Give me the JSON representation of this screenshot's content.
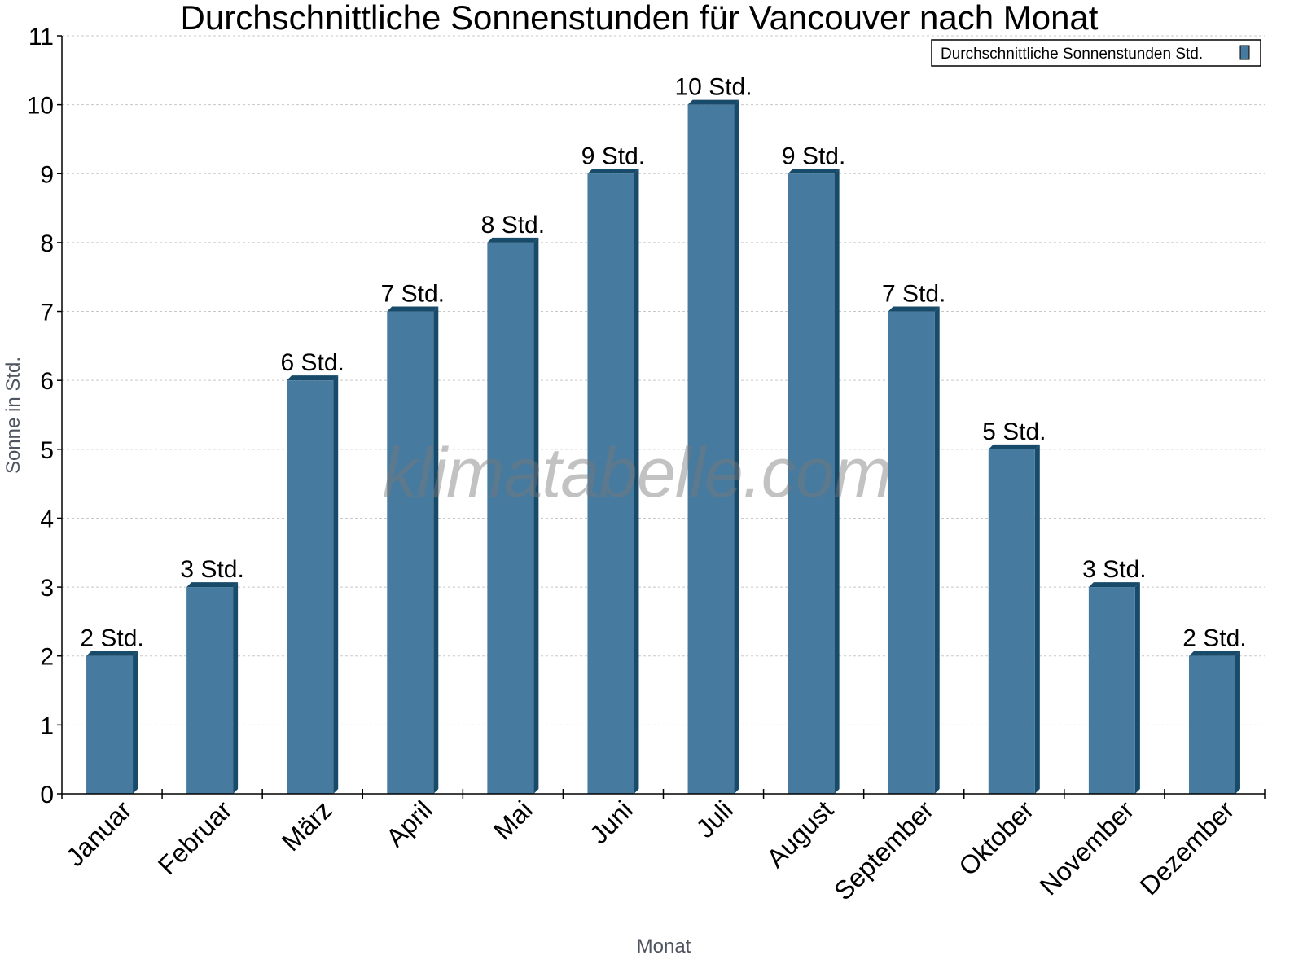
{
  "chart_data": {
    "type": "bar",
    "title": "Durchschnittliche Sonnenstunden für Vancouver nach Monat",
    "xlabel": "Monat",
    "ylabel": "Sonne in Std.",
    "categories": [
      "Januar",
      "Februar",
      "März",
      "April",
      "Mai",
      "Juni",
      "Juli",
      "August",
      "September",
      "Oktober",
      "November",
      "Dezember"
    ],
    "series": [
      {
        "name": "Durchschnittliche Sonnenstunden Std.",
        "values": [
          2,
          3,
          6,
          7,
          8,
          9,
          10,
          9,
          7,
          5,
          3,
          2
        ],
        "labels": [
          "2 Std.",
          "3 Std.",
          "6 Std.",
          "7 Std.",
          "8 Std.",
          "9 Std.",
          "10 Std.",
          "9 Std.",
          "7 Std.",
          "5 Std.",
          "3 Std.",
          "2 Std."
        ]
      }
    ],
    "ylim": [
      0,
      11
    ],
    "yticks": [
      0,
      1,
      2,
      3,
      4,
      5,
      6,
      7,
      8,
      9,
      10,
      11
    ],
    "grid": true,
    "legend_position": "top-right",
    "watermark": "klimatabelle.com",
    "colors": {
      "bar_front": "#467a9e",
      "bar_side": "#184a6a",
      "grid": "#c8c8c8",
      "axis": "#000000"
    }
  }
}
